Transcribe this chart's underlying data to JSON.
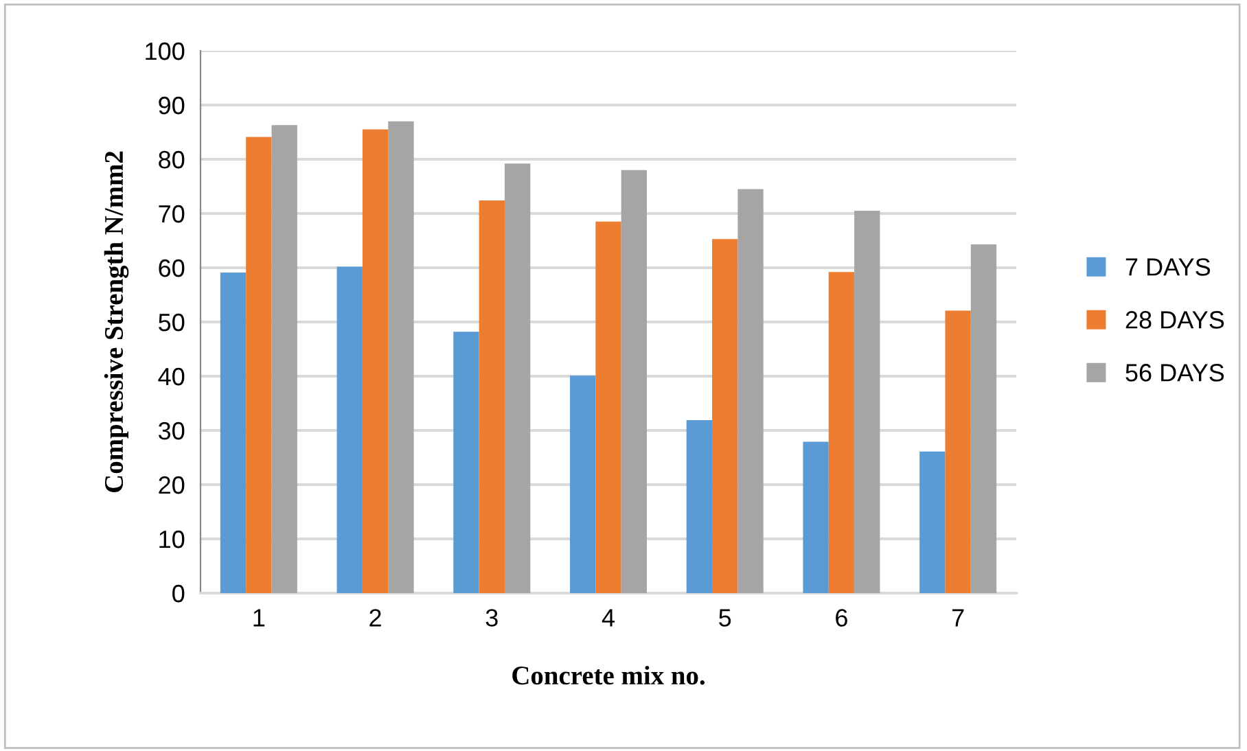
{
  "chart_data": {
    "type": "bar",
    "xlabel": "Concrete mix no.",
    "ylabel": "Compressive Strength N/mm2",
    "categories": [
      "1",
      "2",
      "3",
      "4",
      "5",
      "6",
      "7"
    ],
    "series": [
      {
        "name": "7 DAYS",
        "color": "#5b9bd5",
        "values": [
          59.1,
          60.2,
          48.2,
          40.1,
          31.9,
          27.9,
          26.1
        ]
      },
      {
        "name": "28 DAYS",
        "color": "#ed7d31",
        "values": [
          84.1,
          85.5,
          72.4,
          68.5,
          65.3,
          59.2,
          52.1
        ]
      },
      {
        "name": "56 DAYS",
        "color": "#a5a5a5",
        "values": [
          86.3,
          87.0,
          79.2,
          78.0,
          74.5,
          70.5,
          64.3
        ]
      }
    ],
    "ylim": [
      0,
      100
    ],
    "yticks": [
      0,
      10,
      20,
      30,
      40,
      50,
      60,
      70,
      80,
      90,
      100
    ],
    "grid": "y",
    "legend": "right"
  }
}
